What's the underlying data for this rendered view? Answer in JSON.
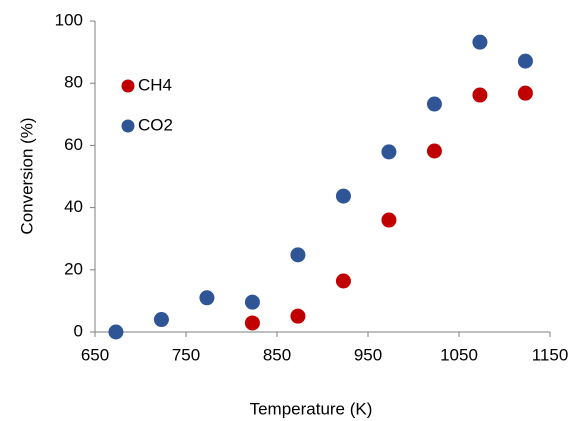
{
  "chart_data": {
    "type": "scatter",
    "x_label": "Temperature (K)",
    "y_label": "Conversion (%)",
    "xlim": [
      650,
      1150
    ],
    "xticks": [
      650,
      750,
      850,
      950,
      1050,
      1150
    ],
    "ylim": [
      0,
      100
    ],
    "yticks": [
      0,
      20,
      40,
      60,
      80,
      100
    ],
    "legend": "top-left",
    "series": [
      {
        "name": "CH4",
        "color": "#c00000",
        "x": [
          823,
          873,
          923,
          973,
          1023,
          1073,
          1123
        ],
        "values": [
          2.9,
          5.1,
          16.4,
          36,
          58.2,
          76.2,
          76.8
        ]
      },
      {
        "name": "CO2",
        "color": "#2f5597",
        "x": [
          673,
          723,
          773,
          823,
          873,
          923,
          973,
          1023,
          1073,
          1123
        ],
        "values": [
          0,
          4,
          11,
          9.6,
          24.8,
          43.7,
          57.9,
          73.3,
          93.2,
          87.1
        ]
      }
    ]
  }
}
